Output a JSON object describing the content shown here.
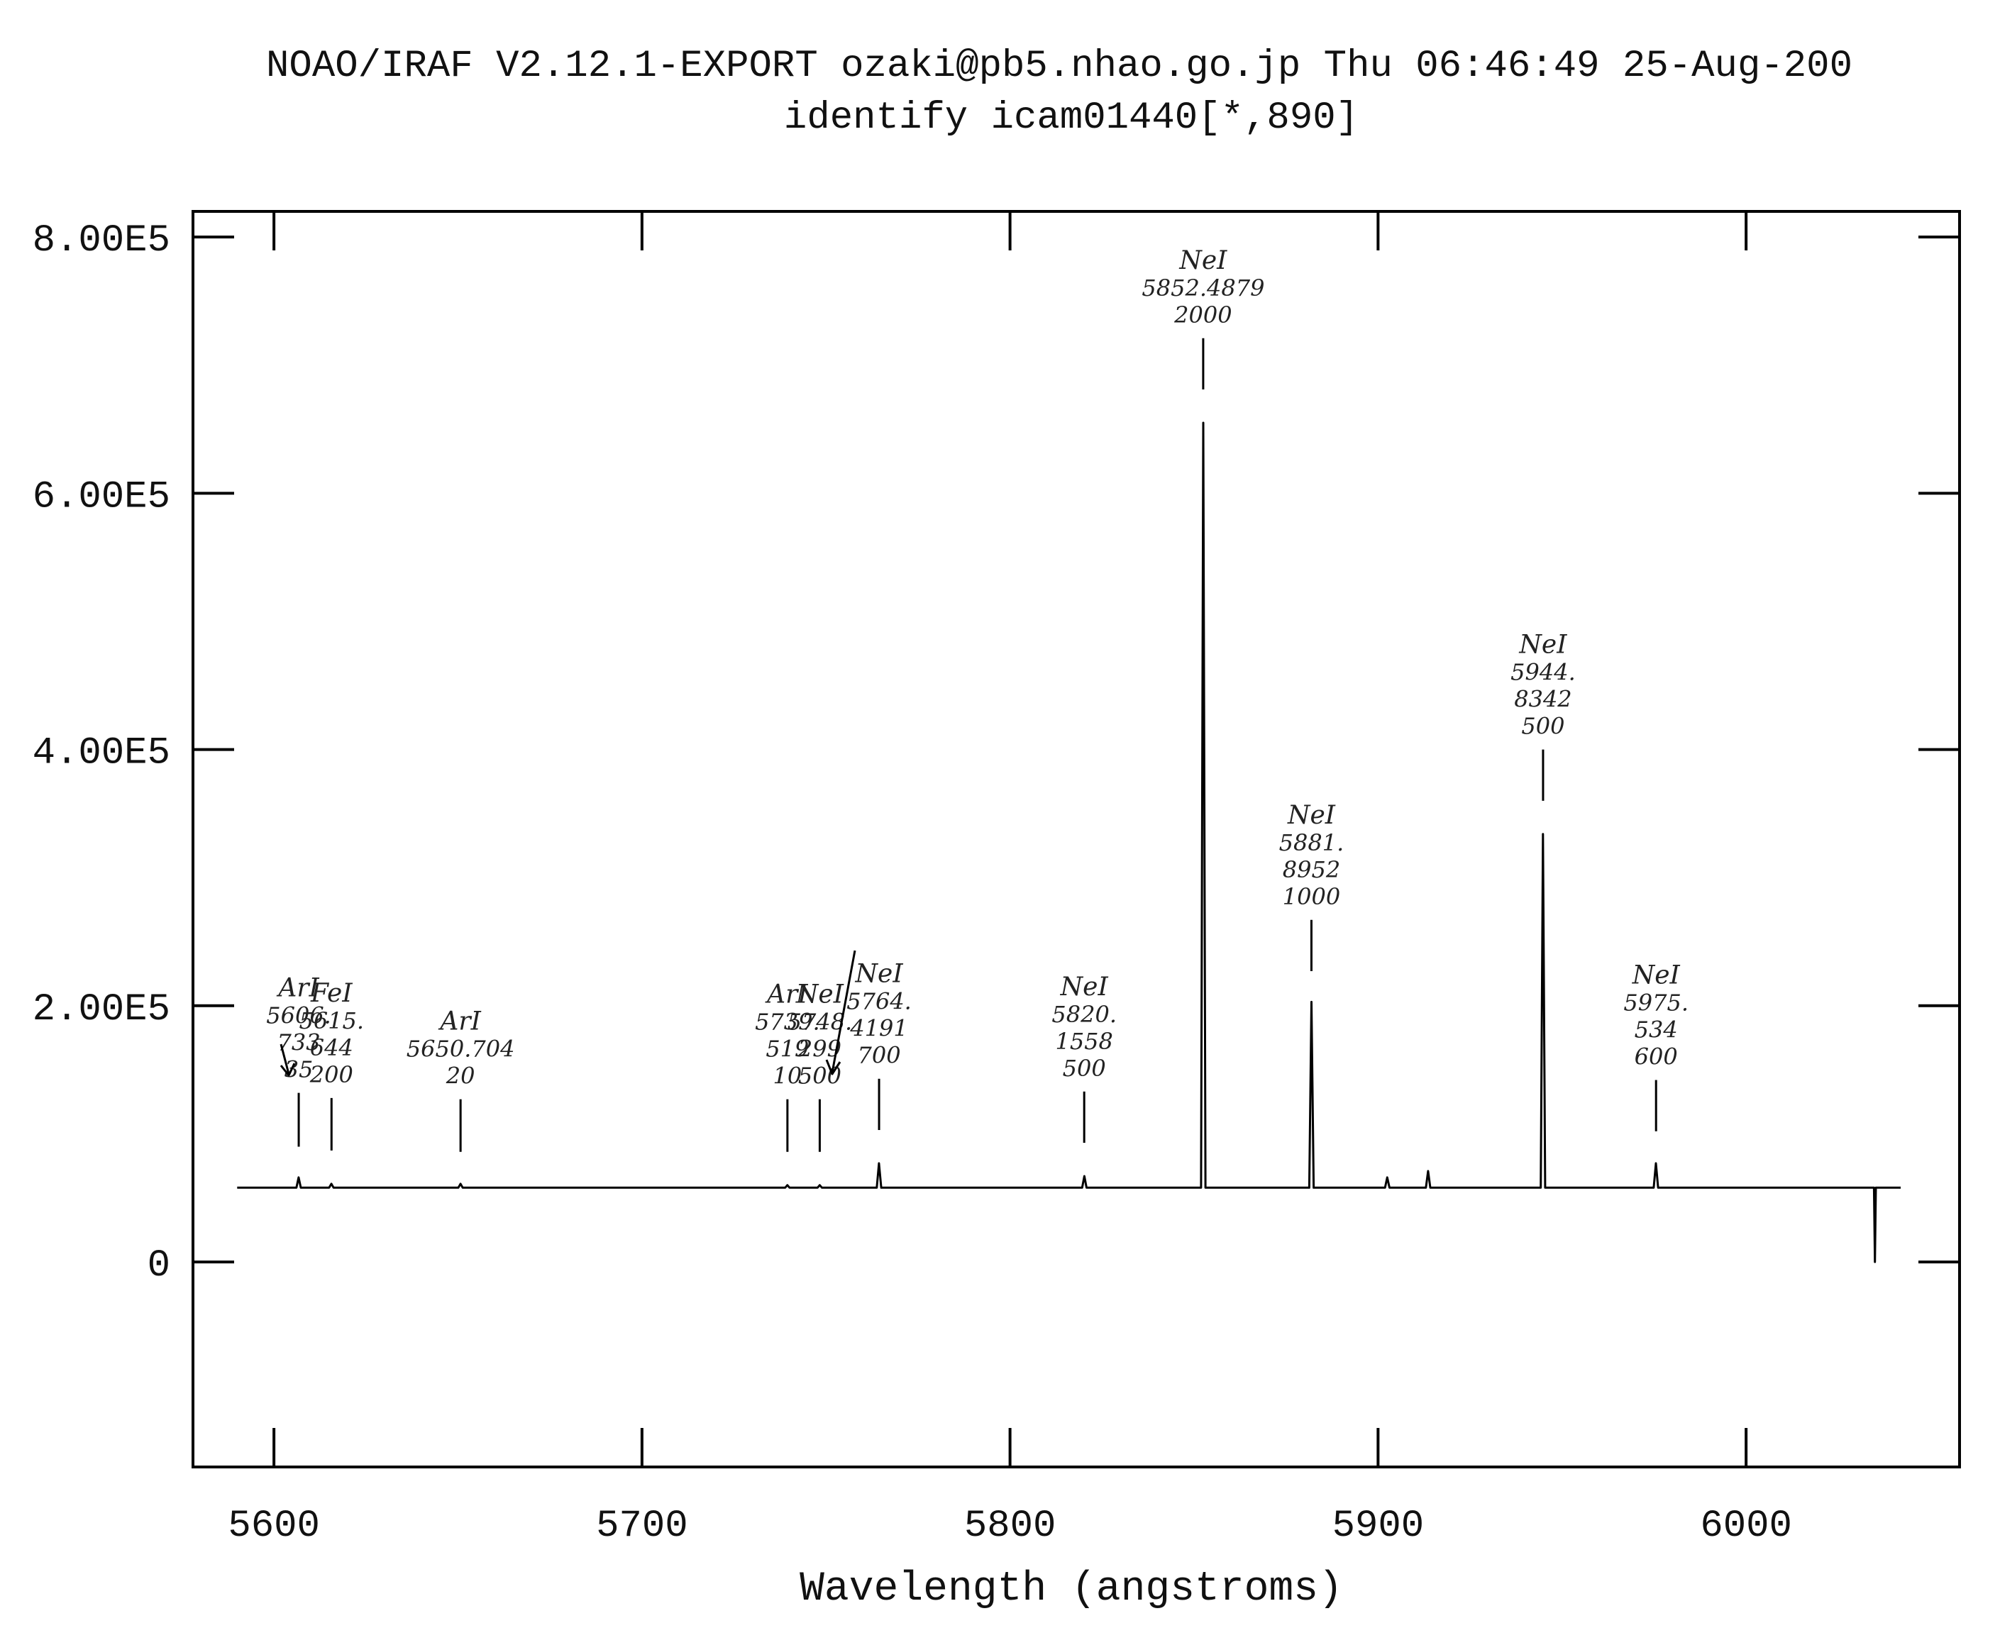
{
  "chart_data": {
    "type": "line",
    "title": "NOAO/IRAF V2.12.1-EXPORT ozaki@pb5.nhao.go.jp Thu 06:46:49 25-Aug-200",
    "subtitle": "identify icam01440[*,890]",
    "xlabel": "Wavelength (angstroms)",
    "ylabel": "",
    "xlim": [
      5578,
      6058
    ],
    "ylim": [
      -160000,
      820000
    ],
    "x_ticks": [
      5600,
      5700,
      5800,
      5900,
      6000
    ],
    "x_tick_labels": [
      "5600",
      "5700",
      "5800",
      "5900",
      "6000"
    ],
    "y_ticks": [
      0,
      200000,
      400000,
      600000,
      800000
    ],
    "y_tick_labels": [
      "0",
      "2.00E5",
      "4.00E5",
      "6.00E5",
      "8.00E5"
    ],
    "grid": false,
    "baseline": 58000,
    "range": [
      5590,
      6042
    ],
    "dip": {
      "x": 6035,
      "y": 0
    },
    "peaks": [
      {
        "x": 5606.7,
        "y": 66000
      },
      {
        "x": 5615.6,
        "y": 61000
      },
      {
        "x": 5650.7,
        "y": 61000
      },
      {
        "x": 5739.5,
        "y": 60000
      },
      {
        "x": 5748.3,
        "y": 60000
      },
      {
        "x": 5764.4,
        "y": 77000
      },
      {
        "x": 5820.2,
        "y": 67000
      },
      {
        "x": 5852.5,
        "y": 655000
      },
      {
        "x": 5881.9,
        "y": 203000
      },
      {
        "x": 5902.5,
        "y": 66000
      },
      {
        "x": 5913.6,
        "y": 71000
      },
      {
        "x": 5944.8,
        "y": 334000
      },
      {
        "x": 5975.5,
        "y": 77000
      }
    ],
    "identified_lines": [
      {
        "x": 5606.733,
        "ion": "ArI",
        "wave": [
          "5606.",
          "733"
        ],
        "strength": "35",
        "y_low": 90000,
        "y_high": 132000
      },
      {
        "x": 5615.644,
        "ion": "FeI",
        "wave": [
          "5615.",
          "644"
        ],
        "strength": "200",
        "y_low": 87000,
        "y_high": 128000
      },
      {
        "x": 5650.704,
        "ion": "ArI",
        "wave": [
          "5650.704"
        ],
        "strength": "20",
        "y_low": 86000,
        "y_high": 127000
      },
      {
        "x": 5739.519,
        "ion": "ArI",
        "wave": [
          "5739.",
          "519"
        ],
        "strength": "10",
        "y_low": 86000,
        "y_high": 127000
      },
      {
        "x": 5748.299,
        "ion": "NeI",
        "wave": [
          "5748.",
          "299"
        ],
        "strength": "500",
        "y_low": 86000,
        "y_high": 127000
      },
      {
        "x": 5764.4191,
        "ion": "NeI",
        "wave": [
          "5764.",
          "4191"
        ],
        "strength": "700",
        "y_low": 103000,
        "y_high": 143000
      },
      {
        "x": 5820.1558,
        "ion": "NeI",
        "wave": [
          "5820.",
          "1558"
        ],
        "strength": "500",
        "y_low": 93000,
        "y_high": 133000
      },
      {
        "x": 5852.4879,
        "ion": "NeI",
        "wave": [
          "5852.4879"
        ],
        "strength": "2000",
        "y_low": 681000,
        "y_high": 721000
      },
      {
        "x": 5881.8952,
        "ion": "NeI",
        "wave": [
          "5881.",
          "8952"
        ],
        "strength": "1000",
        "y_low": 227000,
        "y_high": 267000
      },
      {
        "x": 5944.8342,
        "ion": "NeI",
        "wave": [
          "5944.",
          "8342"
        ],
        "strength": "500",
        "y_low": 360000,
        "y_high": 400000
      },
      {
        "x": 5975.534,
        "ion": "NeI",
        "wave": [
          "5975.",
          "534"
        ],
        "strength": "600",
        "y_low": 102000,
        "y_high": 142000
      }
    ]
  }
}
